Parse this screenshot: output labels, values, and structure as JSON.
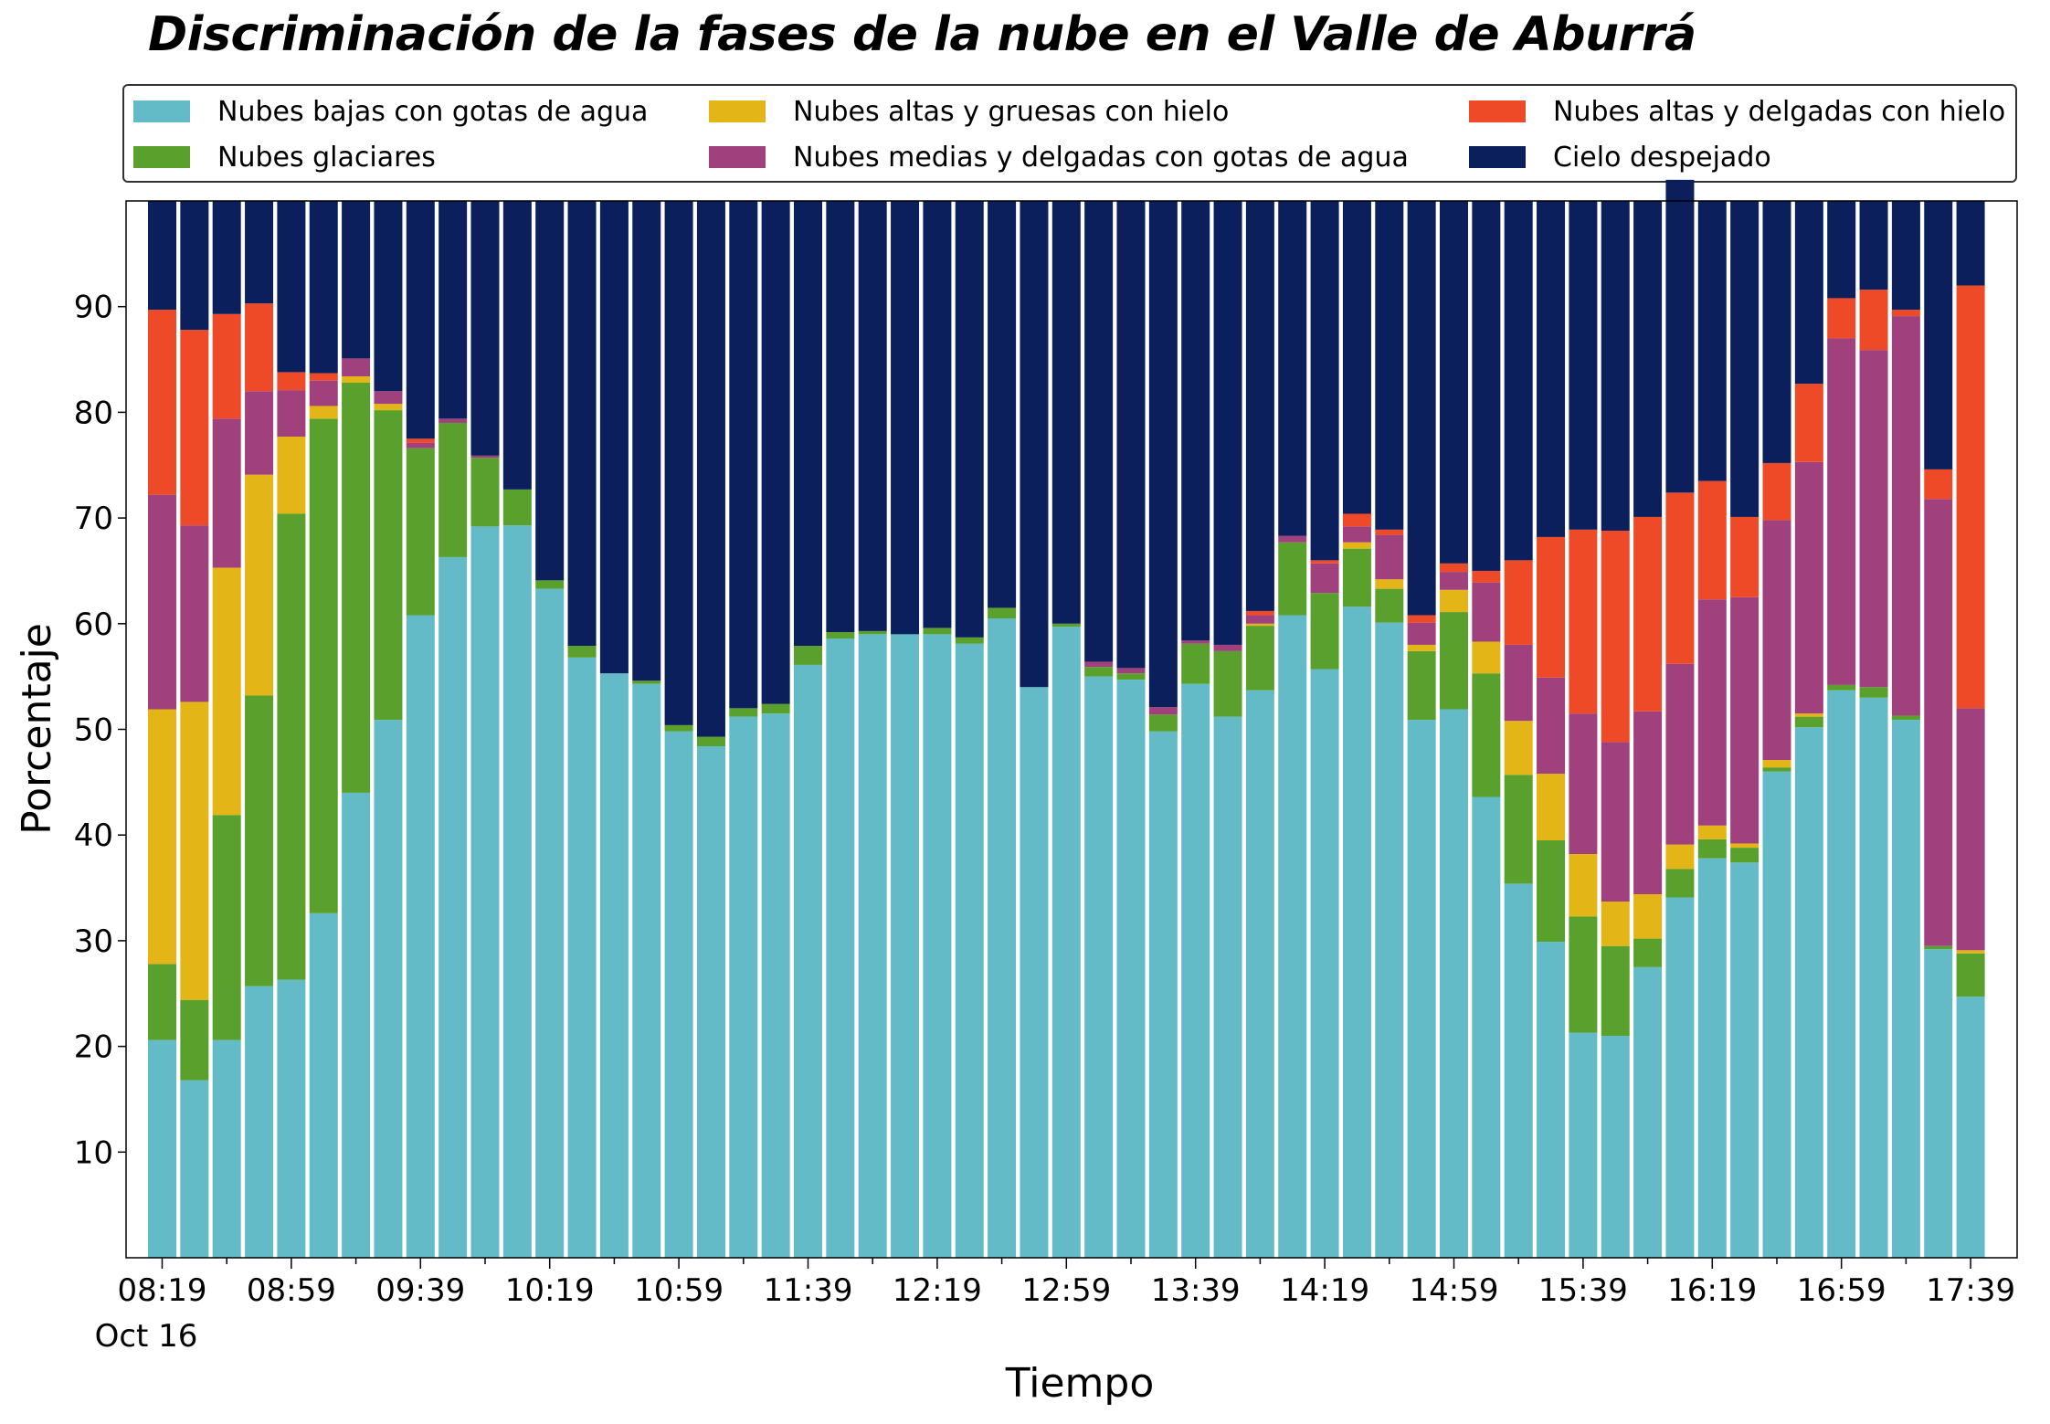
{
  "chart_data": {
    "type": "bar",
    "stacked": true,
    "title": "Discriminación de la fases de la nube en el Valle de Aburrá",
    "xlabel": "Tiempo",
    "ylabel": "Porcentaje",
    "ylim": [
      0,
      100
    ],
    "yticks": [
      10,
      20,
      30,
      40,
      50,
      60,
      70,
      80,
      90
    ],
    "xtick_labels": [
      "08:19",
      "08:59",
      "09:39",
      "10:19",
      "10:59",
      "11:39",
      "12:19",
      "12:59",
      "13:39",
      "14:19",
      "14:59",
      "15:39",
      "16:19",
      "16:59",
      "17:39"
    ],
    "xtick_date_label": "Oct 16",
    "interval_minutes": 10,
    "grid": false,
    "legend_position": "top",
    "series": [
      {
        "name": "Nubes bajas con gotas de agua",
        "color": "#63bbc8",
        "values": [
          20.6,
          16.8,
          20.6,
          25.7,
          26.3,
          32.6,
          44.0,
          50.9,
          60.8,
          66.3,
          69.2,
          69.3,
          63.3,
          56.8,
          55.3,
          54.3,
          49.8,
          48.4,
          51.2,
          51.5,
          56.1,
          58.6,
          59.0,
          59.0,
          59.0,
          58.1,
          60.5,
          54.0,
          59.7,
          55.0,
          54.7,
          49.8,
          54.3,
          51.2,
          53.7,
          60.8,
          55.7,
          61.6,
          60.1,
          50.9,
          51.9,
          43.6,
          35.4,
          29.9,
          21.3,
          21.0,
          27.5,
          34.1,
          37.8,
          37.4,
          46.0,
          50.2,
          53.7,
          53.0,
          50.9,
          29.2,
          24.7
        ]
      },
      {
        "name": "Nubes glaciares",
        "color": "#5aa02c",
        "values": [
          7.2,
          7.6,
          21.3,
          27.5,
          44.1,
          46.8,
          38.8,
          29.3,
          15.8,
          12.7,
          6.5,
          3.4,
          0.8,
          1.1,
          0,
          0.3,
          0.6,
          0.9,
          0.8,
          0.9,
          1.8,
          0.6,
          0.3,
          0,
          0.6,
          0.6,
          1.0,
          0,
          0.3,
          0.9,
          0.6,
          1.6,
          3.8,
          6.2,
          6.1,
          6.9,
          7.2,
          5.5,
          3.2,
          6.5,
          9.2,
          11.7,
          10.3,
          9.6,
          11.0,
          8.5,
          2.7,
          2.7,
          1.8,
          1.4,
          0.4,
          1.0,
          0.5,
          1.0,
          0.4,
          0.3,
          4.1
        ]
      },
      {
        "name": "Nubes altas y gruesas con hielo",
        "color": "#e3b516",
        "values": [
          24.1,
          28.2,
          23.4,
          20.9,
          7.3,
          1.2,
          0.6,
          0.6,
          0,
          0,
          0,
          0,
          0,
          0,
          0,
          0,
          0,
          0,
          0,
          0,
          0,
          0,
          0,
          0,
          0,
          0,
          0,
          0,
          0,
          0,
          0,
          0,
          0,
          0,
          0.2,
          0,
          0,
          0.6,
          0.9,
          0.6,
          2.1,
          3.0,
          5.1,
          6.3,
          5.9,
          4.2,
          4.2,
          2.3,
          1.3,
          0.4,
          0.7,
          0.3,
          0,
          0,
          0,
          0,
          0.3
        ]
      },
      {
        "name": "Nubes medias y delgadas con gotas de agua",
        "color": "#a0407c",
        "values": [
          20.3,
          16.7,
          14.1,
          7.9,
          4.4,
          2.4,
          1.7,
          1.2,
          0.5,
          0.4,
          0.2,
          0,
          0,
          0,
          0,
          0,
          0,
          0,
          0,
          0,
          0,
          0,
          0,
          0,
          0,
          0,
          0,
          0,
          0,
          0.5,
          0.5,
          0.7,
          0.3,
          0.6,
          0.8,
          0.6,
          2.8,
          1.5,
          4.2,
          2.1,
          1.7,
          5.6,
          7.2,
          9.1,
          13.3,
          15.1,
          17.3,
          17.1,
          21.4,
          23.3,
          22.7,
          23.8,
          32.8,
          31.9,
          37.8,
          42.3,
          22.9
        ]
      },
      {
        "name": "Nubes altas y delgadas con hielo",
        "color": "#ef4a28",
        "values": [
          17.5,
          18.5,
          9.9,
          8.3,
          1.7,
          0.7,
          0,
          0,
          0.4,
          0,
          0,
          0,
          0,
          0,
          0,
          0,
          0,
          0,
          0,
          0,
          0,
          0,
          0,
          0,
          0,
          0,
          0,
          0,
          0,
          0,
          0,
          0,
          0,
          0,
          0.4,
          0,
          0.3,
          1.2,
          0.5,
          0.7,
          0.8,
          1.1,
          8.0,
          13.3,
          17.4,
          20.0,
          18.4,
          16.2,
          11.2,
          7.6,
          5.4,
          7.4,
          3.8,
          5.7,
          0.6,
          2.8,
          40.0
        ]
      },
      {
        "name": "Cielo despejado",
        "color": "#0a1f5c",
        "values": [
          10.3,
          12.2,
          10.7,
          9.7,
          16.2,
          16.3,
          14.9,
          18.0,
          22.5,
          20.6,
          24.1,
          27.3,
          35.9,
          42.1,
          44.7,
          45.4,
          49.6,
          50.7,
          48.0,
          47.6,
          42.1,
          40.8,
          40.7,
          41.0,
          40.4,
          41.3,
          38.5,
          46.0,
          40.0,
          43.6,
          44.2,
          47.9,
          41.6,
          42.0,
          38.8,
          31.7,
          34.0,
          29.6,
          31.1,
          39.2,
          34.3,
          35.0,
          34.0,
          31.8,
          31.1,
          31.2,
          29.9,
          29.6,
          26.5,
          29.9,
          24.8,
          17.3,
          9.2,
          8.4,
          10.3,
          25.4,
          8.0
        ]
      }
    ]
  }
}
